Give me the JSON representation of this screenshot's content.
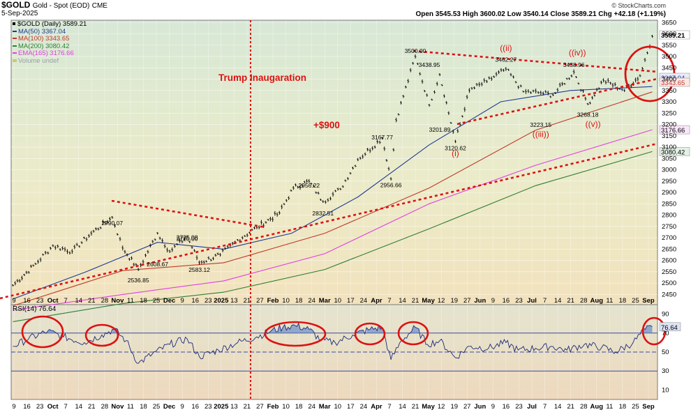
{
  "header": {
    "symbol": "$GOLD",
    "name": "Gold - Spot (EOD)",
    "exchange": "CME",
    "date": "5-Sep-2025",
    "brand": "© StockCharts.com",
    "ohlc": "Open 3545.53  High 3600.02  Low 3540.14  Close 3589.21  Chg +42.18 (+1.19%)"
  },
  "legend": [
    {
      "text": "$GOLD (Daily) 3589.21",
      "color": "#000000"
    },
    {
      "text": "MA(50) 3367.04",
      "color": "#1f3a93"
    },
    {
      "text": "MA(100) 3343.65",
      "color": "#c0392b"
    },
    {
      "text": "MA(200) 3080.42",
      "color": "#2e7d32"
    },
    {
      "text": "EMA(165) 3176.66",
      "color": "#e040e0"
    },
    {
      "text": "Volume undef",
      "color": "#9aa0a6"
    }
  ],
  "chart_data": {
    "type": "line",
    "title": "$GOLD (Daily) 3589.21",
    "y_axis": {
      "ticks": [
        2450,
        2500,
        2550,
        2600,
        2650,
        2700,
        2750,
        2800,
        2850,
        2900,
        2950,
        3000,
        3050,
        3100,
        3150,
        3200,
        3250,
        3300,
        3350,
        3400,
        3450,
        3500,
        3550,
        3600,
        3650
      ],
      "ylim": [
        2405,
        3660
      ]
    },
    "x_axis": {
      "tick_labels": [
        "9",
        "16",
        "23",
        "Oct",
        "7",
        "14",
        "21",
        "28",
        "Nov",
        "11",
        "18",
        "25",
        "Dec",
        "9",
        "16",
        "23",
        "2025",
        "13",
        "21",
        "27",
        "Feb",
        "10",
        "18",
        "24",
        "Mar",
        "10",
        "17",
        "24",
        "Apr",
        "7",
        "14",
        "21",
        "May",
        "12",
        "19",
        "27",
        "Jun",
        "9",
        "16",
        "23",
        "Jul",
        "7",
        "14",
        "21",
        "28",
        "Aug",
        "11",
        "18",
        "25",
        "Sep"
      ]
    },
    "series": [
      {
        "name": "$GOLD (Daily) 3589.21",
        "color": "#000000",
        "x": [
          "2024-09-03",
          "2024-09-16",
          "2024-09-26",
          "2024-10-07",
          "2024-10-18",
          "2024-10-30",
          "2024-11-05",
          "2024-11-14",
          "2024-11-25",
          "2024-12-02",
          "2024-12-12",
          "2024-12-19",
          "2024-12-31",
          "2025-01-10",
          "2025-01-21",
          "2025-02-03",
          "2025-02-11",
          "2025-02-20",
          "2025-02-28",
          "2025-03-10",
          "2025-03-20",
          "2025-04-03",
          "2025-04-08",
          "2025-04-11",
          "2025-04-22",
          "2025-04-30",
          "2025-05-06",
          "2025-05-15",
          "2025-05-23",
          "2025-06-02",
          "2025-06-13",
          "2025-06-23",
          "2025-07-03",
          "2025-07-10",
          "2025-07-22",
          "2025-07-30",
          "2025-08-08",
          "2025-08-20",
          "2025-08-29",
          "2025-09-05"
        ],
        "values": [
          2490,
          2585,
          2665,
          2640,
          2720,
          2790,
          2655,
          2560,
          2720,
          2640,
          2705,
          2590,
          2625,
          2690,
          2745,
          2810,
          2920,
          2950,
          2860,
          2915,
          3045,
          3140,
          2960,
          3220,
          3500,
          3285,
          3420,
          3125,
          3350,
          3390,
          3445,
          3345,
          3340,
          3330,
          3432,
          3290,
          3395,
          3350,
          3415,
          3589.21
        ]
      },
      {
        "name": "MA(50) 3367.04",
        "color": "#1f3a93",
        "x": [
          "2024-09-03",
          "2024-10-15",
          "2024-11-25",
          "2025-01-02",
          "2025-02-10",
          "2025-03-20",
          "2025-04-30",
          "2025-06-10",
          "2025-07-20",
          "2025-09-05"
        ],
        "values": [
          2430,
          2550,
          2680,
          2650,
          2720,
          2880,
          3110,
          3300,
          3350,
          3367.04
        ]
      },
      {
        "name": "MA(100) 3343.65",
        "color": "#c0392b",
        "x": [
          "2024-09-03",
          "2024-11-05",
          "2025-01-02",
          "2025-03-01",
          "2025-04-30",
          "2025-06-30",
          "2025-09-05"
        ],
        "values": [
          2400,
          2555,
          2590,
          2720,
          2920,
          3175,
          3343.65
        ]
      },
      {
        "name": "EMA(165) 3176.66",
        "color": "#e040e0",
        "x": [
          "2024-09-03",
          "2024-11-05",
          "2025-01-02",
          "2025-03-01",
          "2025-04-30",
          "2025-06-30",
          "2025-09-05"
        ],
        "values": [
          2380,
          2450,
          2510,
          2630,
          2850,
          3020,
          3176.66
        ]
      },
      {
        "name": "MA(200) 3080.42",
        "color": "#2e7d32",
        "x": [
          "2024-09-03",
          "2024-11-05",
          "2025-01-02",
          "2025-03-01",
          "2025-04-30",
          "2025-06-30",
          "2025-09-05"
        ],
        "values": [
          2330,
          2410,
          2460,
          2560,
          2740,
          2930,
          3080.42
        ]
      }
    ],
    "price_labels": [
      {
        "text": "2790.07",
        "x": "2024-10-30",
        "y": 2790.07
      },
      {
        "text": "2720.00",
        "x": "2024-12-12",
        "y": 2720
      },
      {
        "text": "2726.08",
        "x": "2024-12-12",
        "y": 2726.08
      },
      {
        "text": "2608.67",
        "x": "2024-11-25",
        "y": 2608.67
      },
      {
        "text": "2536.85",
        "x": "2024-11-14",
        "y": 2536.85
      },
      {
        "text": "2583.12",
        "x": "2024-12-19",
        "y": 2583.12
      },
      {
        "text": "2956.22",
        "x": "2025-02-20",
        "y": 2956.22
      },
      {
        "text": "2832.51",
        "x": "2025-02-28",
        "y": 2832.51
      },
      {
        "text": "3167.77",
        "x": "2025-04-03",
        "y": 3167.77
      },
      {
        "text": "2956.66",
        "x": "2025-04-08",
        "y": 2956.66
      },
      {
        "text": "3500.00",
        "x": "2025-04-22",
        "y": 3500
      },
      {
        "text": "3438.95",
        "x": "2025-04-30",
        "y": 3438.95
      },
      {
        "text": "3201.89",
        "x": "2025-05-06",
        "y": 3201.89
      },
      {
        "text": "3120.62",
        "x": "2025-05-15",
        "y": 3120.62
      },
      {
        "text": "3462.27",
        "x": "2025-06-13",
        "y": 3462.27
      },
      {
        "text": "3223.15",
        "x": "2025-07-03",
        "y": 3223.15
      },
      {
        "text": "3438.96",
        "x": "2025-07-22",
        "y": 3438.96
      },
      {
        "text": "3268.18",
        "x": "2025-07-30",
        "y": 3268.18
      }
    ],
    "wave_labels": [
      {
        "text": "(i)",
        "x": "2025-05-15",
        "y": 3060
      },
      {
        "text": "((ii)",
        "x": "2025-06-13",
        "y": 3525
      },
      {
        "text": "((iii))",
        "x": "2025-07-03",
        "y": 3145
      },
      {
        "text": "((iv))",
        "x": "2025-07-24",
        "y": 3505
      },
      {
        "text": "((v))",
        "x": "2025-08-02",
        "y": 3190
      }
    ],
    "annotations": [
      {
        "text": "Trump Inaugaration",
        "color": "#dd1111"
      },
      {
        "text": "+$900",
        "color": "#dd1111"
      }
    ],
    "last_value_tags": [
      {
        "text": "3589.21",
        "value": 3589.21,
        "bg": "#ffffff",
        "fg": "#000000"
      },
      {
        "text": "3367.04",
        "value": 3367.04,
        "bg": "#e8ecf8",
        "fg": "#1f3a93"
      },
      {
        "text": "3343.65",
        "value": 3343.65,
        "bg": "#fde8e6",
        "fg": "#c0392b"
      },
      {
        "text": "3176.66",
        "value": 3176.66,
        "bg": "#fbe6fb",
        "fg": "#000000"
      },
      {
        "text": "3080.42",
        "value": 3080.42,
        "bg": "#e3f1e4",
        "fg": "#000000"
      }
    ],
    "rsi": {
      "label": "RSI(14) 76.64",
      "ticks": [
        10,
        30,
        50,
        70,
        90
      ],
      "ylim": [
        0,
        100
      ],
      "last": 76.64,
      "last_label": "76.64",
      "x": [
        "2024-09-03",
        "2024-09-12",
        "2024-09-23",
        "2024-10-02",
        "2024-10-14",
        "2024-10-24",
        "2024-10-31",
        "2024-11-07",
        "2024-11-14",
        "2024-11-22",
        "2024-12-02",
        "2024-12-12",
        "2024-12-19",
        "2024-12-30",
        "2025-01-10",
        "2025-01-21",
        "2025-01-29",
        "2025-02-05",
        "2025-02-12",
        "2025-02-20",
        "2025-02-27",
        "2025-03-07",
        "2025-03-17",
        "2025-03-27",
        "2025-04-03",
        "2025-04-08",
        "2025-04-14",
        "2025-04-22",
        "2025-04-29",
        "2025-05-06",
        "2025-05-15",
        "2025-05-23",
        "2025-06-03",
        "2025-06-13",
        "2025-06-20",
        "2025-06-30",
        "2025-07-09",
        "2025-07-18",
        "2025-07-28",
        "2025-08-07",
        "2025-08-15",
        "2025-08-25",
        "2025-09-01",
        "2025-09-05"
      ],
      "values": [
        56,
        64,
        72,
        66,
        60,
        68,
        74,
        62,
        38,
        48,
        58,
        64,
        45,
        52,
        60,
        66,
        72,
        76,
        78,
        74,
        62,
        60,
        68,
        74,
        76,
        42,
        62,
        76,
        58,
        62,
        44,
        56,
        54,
        60,
        52,
        54,
        56,
        52,
        58,
        55,
        50,
        60,
        74,
        76.64
      ]
    }
  }
}
